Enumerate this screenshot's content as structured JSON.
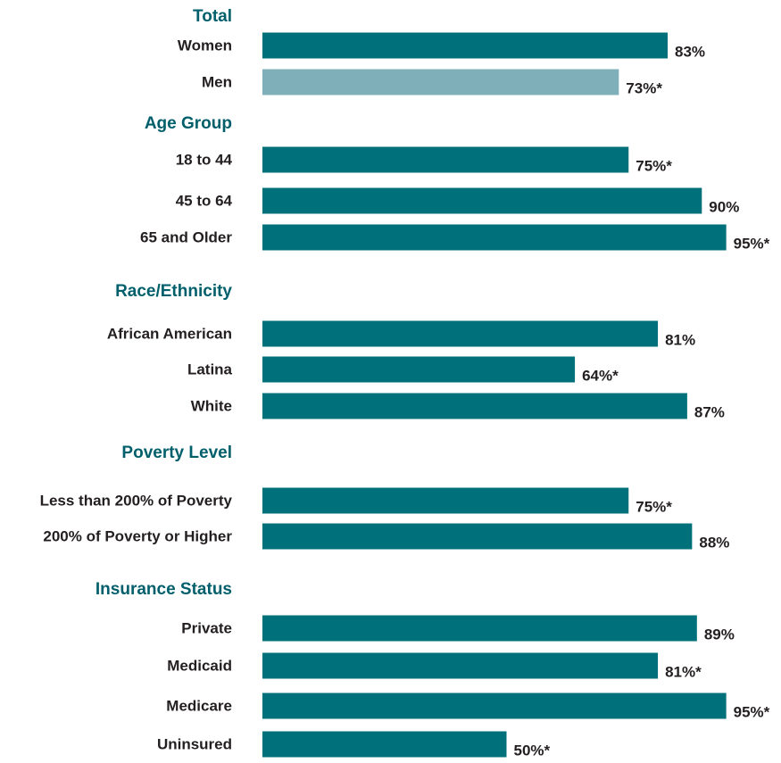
{
  "chart_data": {
    "type": "grouped-hbar",
    "xlim": [
      0,
      100
    ],
    "groups": [
      {
        "name": "Total",
        "categories": [
          "Women",
          "Men"
        ],
        "values": [
          83,
          73
        ],
        "value_labels": [
          "83%",
          "73%*"
        ],
        "colors": [
          "#00717a",
          "#7fb0b9"
        ]
      },
      {
        "name": "Age Group",
        "categories": [
          "18 to 44",
          "45 to 64",
          "65 and Older"
        ],
        "values": [
          75,
          90,
          95
        ],
        "value_labels": [
          "75%*",
          "90%",
          "95%*"
        ],
        "colors": [
          "#00717a",
          "#00717a",
          "#00717a"
        ]
      },
      {
        "name": "Race/Ethnicity",
        "categories": [
          "African American",
          "Latina",
          "White"
        ],
        "values": [
          81,
          64,
          87
        ],
        "value_labels": [
          "81%",
          "64%*",
          "87%"
        ],
        "colors": [
          "#00717a",
          "#00717a",
          "#00717a"
        ]
      },
      {
        "name": "Poverty Level",
        "categories": [
          "Less than 200% of Poverty",
          "200% of Poverty or Higher"
        ],
        "values": [
          75,
          88
        ],
        "value_labels": [
          "75%*",
          "88%"
        ],
        "colors": [
          "#00717a",
          "#00717a"
        ]
      },
      {
        "name": "Insurance Status",
        "categories": [
          "Private",
          "Medicaid",
          "Medicare",
          "Uninsured"
        ],
        "values": [
          89,
          81,
          95,
          50
        ],
        "value_labels": [
          "89%",
          "81%*",
          "95%*",
          "50%*"
        ],
        "colors": [
          "#00717a",
          "#00717a",
          "#00717a",
          "#00717a"
        ]
      }
    ]
  }
}
